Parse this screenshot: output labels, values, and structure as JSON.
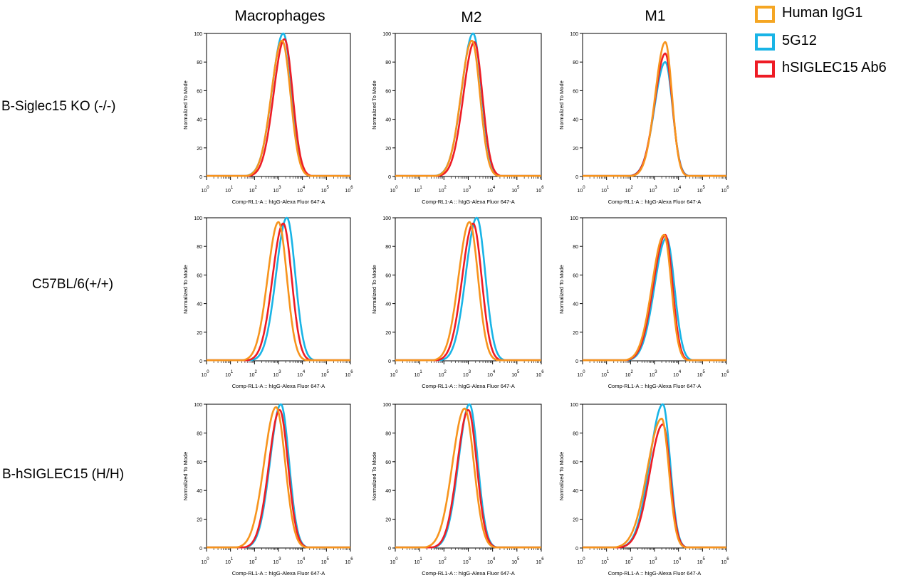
{
  "colors": {
    "human_igg1": "#f7941d",
    "5g12": "#19b4e6",
    "hsiglec15_ab6": "#ee1c25",
    "axis": "#000000"
  },
  "legend": [
    {
      "key": "human_igg1",
      "label": "Human IgG1",
      "color": "#f5a623"
    },
    {
      "key": "5g12",
      "label": "5G12",
      "color": "#19b4e6"
    },
    {
      "key": "hsiglec15_ab6",
      "label": "hSIGLEC15 Ab6",
      "color": "#ee1c25"
    }
  ],
  "columns": [
    "Macrophages",
    "M2",
    "M1"
  ],
  "rows": [
    "B-Siglec15 KO (-/-)",
    "C57BL/6(+/+)",
    "B-hSIGLEC15 (H/H)"
  ],
  "chart_data": {
    "type": "line",
    "layout": "3x3 grid of flow cytometry histograms",
    "xlabel": "Comp-RL1-A :: hIgG-Alexa Fluor   647-A",
    "ylabel": "Normalized To Mode",
    "x_scale": "log",
    "xlim_log10": [
      0,
      6
    ],
    "x_ticks": [
      "10^0",
      "10^1",
      "10^2",
      "10^3",
      "10^4",
      "10^5",
      "10^6"
    ],
    "ylim": [
      0,
      100
    ],
    "y_ticks": [
      0,
      20,
      40,
      60,
      80,
      100
    ],
    "series_names": [
      "Human IgG1",
      "5G12",
      "hSIGLEC15 Ab6"
    ],
    "panels": [
      {
        "row": "B-Siglec15 KO (-/-)",
        "column": "Macrophages",
        "series": [
          {
            "name": "Human IgG1",
            "peak_log10": 3.15,
            "peak": 95,
            "left_width": 0.45,
            "right_width": 0.35
          },
          {
            "name": "5G12",
            "peak_log10": 3.2,
            "peak": 100,
            "left_width": 0.47,
            "right_width": 0.35
          },
          {
            "name": "hSIGLEC15 Ab6",
            "peak_log10": 3.25,
            "peak": 96,
            "left_width": 0.45,
            "right_width": 0.34
          }
        ]
      },
      {
        "row": "B-Siglec15 KO (-/-)",
        "column": "M2",
        "series": [
          {
            "name": "Human IgG1",
            "peak_log10": 3.15,
            "peak": 95,
            "left_width": 0.45,
            "right_width": 0.33
          },
          {
            "name": "5G12",
            "peak_log10": 3.2,
            "peak": 100,
            "left_width": 0.47,
            "right_width": 0.34
          },
          {
            "name": "hSIGLEC15 Ab6",
            "peak_log10": 3.25,
            "peak": 94,
            "left_width": 0.45,
            "right_width": 0.33
          }
        ]
      },
      {
        "row": "B-Siglec15 KO (-/-)",
        "column": "M1",
        "series": [
          {
            "name": "Human IgG1",
            "peak_log10": 3.45,
            "peak": 94,
            "left_width": 0.42,
            "right_width": 0.28
          },
          {
            "name": "5G12",
            "peak_log10": 3.45,
            "peak": 80,
            "left_width": 0.45,
            "right_width": 0.3
          },
          {
            "name": "hSIGLEC15 Ab6",
            "peak_log10": 3.45,
            "peak": 86,
            "left_width": 0.44,
            "right_width": 0.29
          }
        ]
      },
      {
        "row": "C57BL/6(+/+)",
        "column": "Macrophages",
        "series": [
          {
            "name": "Human IgG1",
            "peak_log10": 3.0,
            "peak": 97,
            "left_width": 0.45,
            "right_width": 0.35
          },
          {
            "name": "5G12",
            "peak_log10": 3.35,
            "peak": 100,
            "left_width": 0.45,
            "right_width": 0.35
          },
          {
            "name": "hSIGLEC15 Ab6",
            "peak_log10": 3.2,
            "peak": 96,
            "left_width": 0.45,
            "right_width": 0.35
          }
        ]
      },
      {
        "row": "C57BL/6(+/+)",
        "column": "M2",
        "series": [
          {
            "name": "Human IgG1",
            "peak_log10": 3.05,
            "peak": 97,
            "left_width": 0.45,
            "right_width": 0.35
          },
          {
            "name": "5G12",
            "peak_log10": 3.35,
            "peak": 100,
            "left_width": 0.45,
            "right_width": 0.35
          },
          {
            "name": "hSIGLEC15 Ab6",
            "peak_log10": 3.2,
            "peak": 96,
            "left_width": 0.45,
            "right_width": 0.35
          }
        ]
      },
      {
        "row": "C57BL/6(+/+)",
        "column": "M1",
        "series": [
          {
            "name": "Human IgG1",
            "peak_log10": 3.4,
            "peak": 88,
            "left_width": 0.5,
            "right_width": 0.3
          },
          {
            "name": "5G12",
            "peak_log10": 3.5,
            "peak": 86,
            "left_width": 0.5,
            "right_width": 0.33
          },
          {
            "name": "hSIGLEC15 Ab6",
            "peak_log10": 3.45,
            "peak": 88,
            "left_width": 0.5,
            "right_width": 0.3
          }
        ]
      },
      {
        "row": "B-hSIGLEC15 (H/H)",
        "column": "Macrophages",
        "series": [
          {
            "name": "Human IgG1",
            "peak_log10": 2.9,
            "peak": 98,
            "left_width": 0.5,
            "right_width": 0.38
          },
          {
            "name": "5G12",
            "peak_log10": 3.1,
            "peak": 100,
            "left_width": 0.45,
            "right_width": 0.34
          },
          {
            "name": "hSIGLEC15 Ab6",
            "peak_log10": 3.05,
            "peak": 96,
            "left_width": 0.45,
            "right_width": 0.35
          }
        ]
      },
      {
        "row": "B-hSIGLEC15 (H/H)",
        "column": "M2",
        "series": [
          {
            "name": "Human IgG1",
            "peak_log10": 2.85,
            "peak": 97,
            "left_width": 0.5,
            "right_width": 0.38
          },
          {
            "name": "5G12",
            "peak_log10": 3.05,
            "peak": 100,
            "left_width": 0.45,
            "right_width": 0.34
          },
          {
            "name": "hSIGLEC15 Ab6",
            "peak_log10": 3.0,
            "peak": 96,
            "left_width": 0.45,
            "right_width": 0.35
          }
        ]
      },
      {
        "row": "B-hSIGLEC15 (H/H)",
        "column": "M1",
        "series": [
          {
            "name": "Human IgG1",
            "peak_log10": 3.3,
            "peak": 90,
            "left_width": 0.6,
            "right_width": 0.3
          },
          {
            "name": "5G12",
            "peak_log10": 3.35,
            "peak": 100,
            "left_width": 0.55,
            "right_width": 0.3
          },
          {
            "name": "hSIGLEC15 Ab6",
            "peak_log10": 3.35,
            "peak": 86,
            "left_width": 0.55,
            "right_width": 0.3
          }
        ]
      }
    ]
  }
}
